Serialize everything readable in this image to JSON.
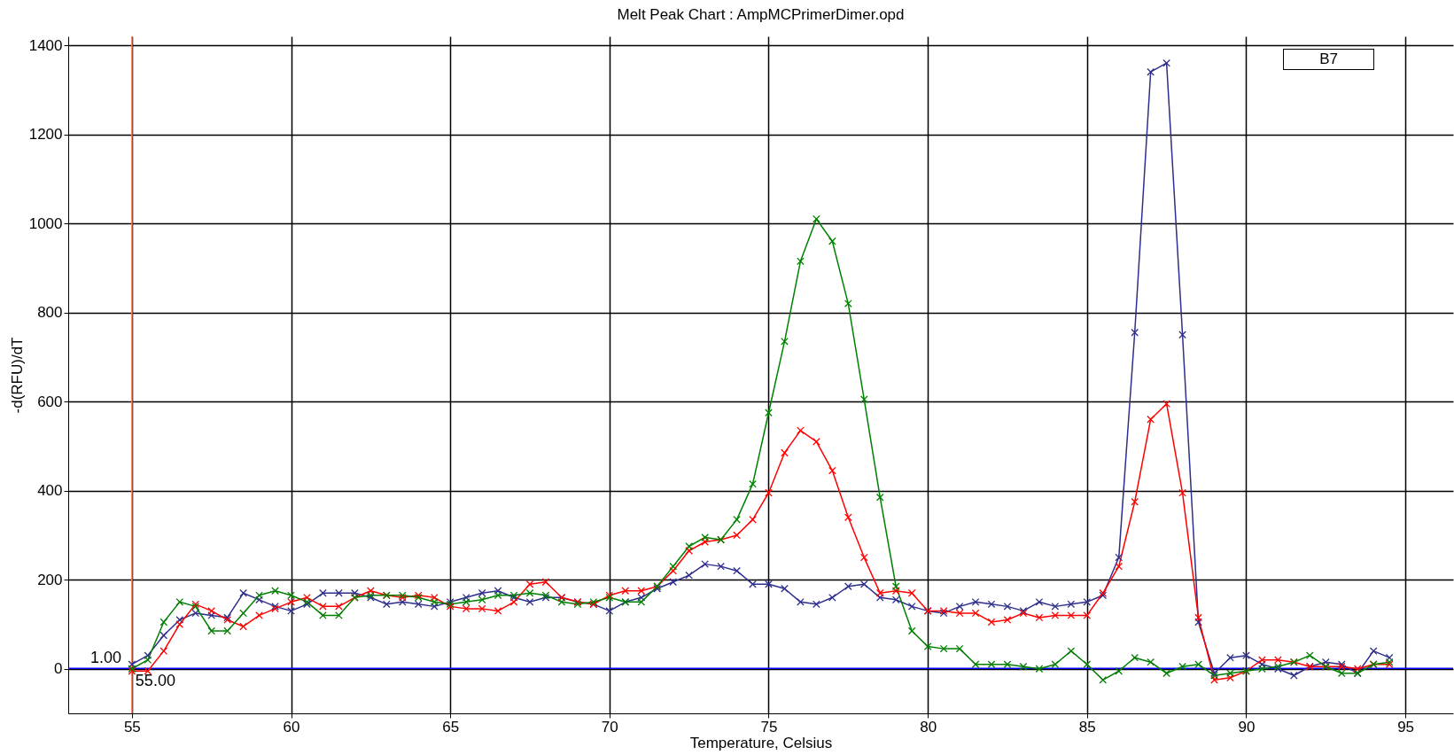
{
  "chart_data": {
    "type": "line",
    "title": "Melt Peak Chart : AmpMCPrimerDimer.opd",
    "xlabel": "Temperature, Celsius",
    "ylabel": "-d(RFU)/dT",
    "x": [
      55,
      55.5,
      56,
      56.5,
      57,
      57.5,
      58,
      58.5,
      59,
      59.5,
      60,
      60.5,
      61,
      61.5,
      62,
      62.5,
      63,
      63.5,
      64,
      64.5,
      65,
      65.5,
      66,
      66.5,
      67,
      67.5,
      68,
      68.5,
      69,
      69.5,
      70,
      70.5,
      71,
      71.5,
      72,
      72.5,
      73,
      73.5,
      74,
      74.5,
      75,
      75.5,
      76,
      76.5,
      77,
      77.5,
      78,
      78.5,
      79,
      79.5,
      80,
      80.5,
      81,
      81.5,
      82,
      82.5,
      83,
      83.5,
      84,
      84.5,
      85,
      85.5,
      86,
      86.5,
      87,
      87.5,
      88,
      88.5,
      89,
      89.5,
      90,
      90.5,
      91,
      91.5,
      92,
      92.5,
      93,
      93.5,
      94,
      94.5
    ],
    "series": [
      {
        "color": "#2e2e8c",
        "values": [
          10,
          30,
          75,
          110,
          125,
          120,
          115,
          170,
          155,
          140,
          130,
          145,
          170,
          170,
          170,
          160,
          145,
          150,
          145,
          140,
          150,
          160,
          170,
          175,
          160,
          150,
          160,
          160,
          150,
          145,
          130,
          150,
          160,
          180,
          195,
          210,
          235,
          230,
          220,
          190,
          190,
          180,
          150,
          145,
          160,
          185,
          190,
          160,
          155,
          140,
          130,
          125,
          140,
          150,
          145,
          140,
          130,
          150,
          140,
          145,
          150,
          165,
          250,
          755,
          1340,
          1360,
          750,
          105,
          -10,
          25,
          30,
          10,
          0,
          -15,
          5,
          15,
          10,
          -10,
          40,
          25
        ]
      },
      {
        "color": "#ff0000",
        "values": [
          -5,
          -5,
          40,
          100,
          145,
          130,
          110,
          95,
          120,
          135,
          150,
          160,
          140,
          140,
          160,
          175,
          165,
          160,
          165,
          160,
          140,
          135,
          135,
          130,
          150,
          190,
          195,
          160,
          150,
          145,
          165,
          175,
          175,
          185,
          220,
          265,
          285,
          290,
          300,
          335,
          395,
          485,
          535,
          510,
          445,
          340,
          250,
          170,
          175,
          170,
          130,
          130,
          125,
          125,
          105,
          110,
          125,
          115,
          120,
          120,
          120,
          170,
          230,
          375,
          560,
          595,
          395,
          115,
          -25,
          -20,
          -5,
          20,
          20,
          15,
          5,
          5,
          5,
          0,
          10,
          10
        ]
      },
      {
        "color": "#008000",
        "values": [
          0,
          20,
          105,
          150,
          140,
          85,
          85,
          125,
          165,
          175,
          165,
          150,
          120,
          120,
          160,
          165,
          165,
          165,
          160,
          150,
          145,
          150,
          155,
          165,
          165,
          170,
          165,
          150,
          145,
          150,
          160,
          150,
          150,
          185,
          230,
          275,
          295,
          290,
          335,
          415,
          575,
          735,
          915,
          1010,
          960,
          820,
          605,
          385,
          185,
          85,
          50,
          45,
          45,
          10,
          10,
          10,
          5,
          0,
          10,
          40,
          10,
          -25,
          -5,
          25,
          15,
          -10,
          5,
          10,
          -15,
          -10,
          -5,
          0,
          5,
          15,
          30,
          5,
          -10,
          -10,
          10,
          15
        ]
      }
    ],
    "xlim": [
      53,
      96.5
    ],
    "xticks": [
      55,
      60,
      65,
      70,
      75,
      80,
      85,
      90,
      95
    ],
    "ylim": [
      -100,
      1420
    ],
    "yticks": [
      0,
      200,
      400,
      600,
      800,
      1000,
      1200,
      1400
    ],
    "grid": true,
    "marker": "cross",
    "ref_lines": [
      {
        "axis": "x",
        "value": 55,
        "label": "55.00",
        "color": "#ff8060"
      },
      {
        "axis": "y",
        "value": 1,
        "label": "1.00",
        "color": "#0000ff"
      }
    ],
    "annotations": [
      "B7"
    ]
  }
}
